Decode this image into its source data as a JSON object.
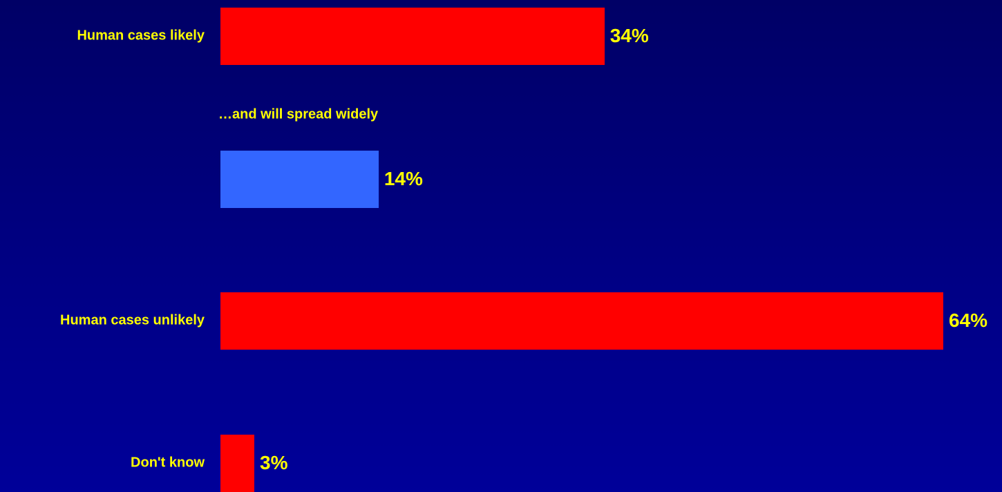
{
  "chart_data": {
    "type": "bar",
    "orientation": "horizontal",
    "title": "",
    "xlabel": "",
    "ylabel": "",
    "grid": false,
    "legend": "none",
    "rows": [
      {
        "category": "Human cases likely",
        "value": 34,
        "value_label": "34%",
        "color": "#ff0000"
      },
      {
        "category": "",
        "sublabel": "…and will spread widely",
        "value": 14,
        "value_label": "14%",
        "color": "#3366ff"
      },
      {
        "category": "Human cases unlikely",
        "value": 64,
        "value_label": "64%",
        "color": "#ff0000"
      },
      {
        "category": "Don't know",
        "value": 3,
        "value_label": "3%",
        "color": "#ff0000"
      }
    ],
    "xlim": [
      0,
      64
    ]
  },
  "colors": {
    "background": "#000080",
    "text": "#ffff00",
    "primary_bar": "#ff0000",
    "secondary_bar": "#3366ff"
  }
}
